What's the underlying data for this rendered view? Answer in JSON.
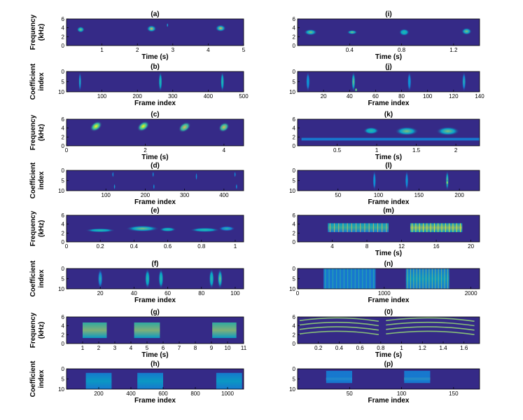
{
  "figure": {
    "left_column_ylabels": {
      "spectrogram": [
        "Frequency",
        "(kHz)"
      ],
      "coefficients": [
        "Coefficient",
        "index"
      ]
    }
  },
  "chart_data": [
    {
      "id": "a",
      "type": "heatmap",
      "title": "(a)",
      "xlabel": "Time (s)",
      "xlim": [
        0,
        5
      ],
      "xticks": [
        1,
        2,
        3,
        4,
        5
      ],
      "ylim": [
        0,
        6
      ],
      "yticks": [
        0,
        2,
        4,
        6
      ],
      "ydir": "normal",
      "blobs": [
        {
          "x": 0.4,
          "y": 3.6,
          "w": 0.22,
          "h": 1.4,
          "i": 0.75
        },
        {
          "x": 2.4,
          "y": 3.8,
          "w": 0.28,
          "h": 1.6,
          "i": 0.8
        },
        {
          "x": 2.85,
          "y": 4.6,
          "w": 0.05,
          "h": 1.0,
          "i": 0.55
        },
        {
          "x": 4.35,
          "y": 3.9,
          "w": 0.3,
          "h": 1.6,
          "i": 0.8
        }
      ]
    },
    {
      "id": "b",
      "type": "heatmap",
      "title": "(b)",
      "xlabel": "Frame index",
      "xlim": [
        0,
        500
      ],
      "xticks": [
        100,
        200,
        300,
        400,
        500
      ],
      "ylim": [
        0,
        10
      ],
      "yticks": [
        0,
        5,
        10
      ],
      "ydir": "reverse",
      "blobs": [
        {
          "x": 38,
          "y": 5,
          "w": 8,
          "h": 10,
          "i": 0.55
        },
        {
          "x": 265,
          "y": 5,
          "w": 10,
          "h": 10,
          "i": 0.6
        },
        {
          "x": 440,
          "y": 5,
          "w": 10,
          "h": 10,
          "i": 0.6
        }
      ]
    },
    {
      "id": "c",
      "type": "heatmap",
      "title": "(c)",
      "xlabel": "Time (s)",
      "xlim": [
        0,
        4.5
      ],
      "xticks": [
        0,
        2,
        4
      ],
      "ylim": [
        0,
        6
      ],
      "yticks": [
        0,
        2,
        4,
        6
      ],
      "ydir": "normal",
      "blobs": [
        {
          "x": 0.75,
          "y": 4.4,
          "w": 0.35,
          "h": 2.0,
          "i": 0.9,
          "slant": -1
        },
        {
          "x": 1.95,
          "y": 4.4,
          "w": 0.35,
          "h": 2.0,
          "i": 0.9,
          "slant": -1
        },
        {
          "x": 3.0,
          "y": 4.2,
          "w": 0.35,
          "h": 2.0,
          "i": 0.85,
          "slant": -1
        },
        {
          "x": 4.0,
          "y": 4.2,
          "w": 0.3,
          "h": 2.0,
          "i": 0.85,
          "slant": -1
        }
      ]
    },
    {
      "id": "d",
      "type": "heatmap",
      "title": "(d)",
      "xlabel": "Frame index",
      "xlim": [
        0,
        450
      ],
      "xticks": [
        100,
        200,
        300,
        400
      ],
      "ylim": [
        0,
        10
      ],
      "yticks": [
        0,
        5,
        10
      ],
      "ydir": "reverse",
      "blobs": [
        {
          "x": 118,
          "y": 2,
          "w": 4,
          "h": 3,
          "i": 0.5
        },
        {
          "x": 122,
          "y": 8,
          "w": 4,
          "h": 3,
          "i": 0.55
        },
        {
          "x": 220,
          "y": 2,
          "w": 4,
          "h": 3,
          "i": 0.5
        },
        {
          "x": 222,
          "y": 8,
          "w": 4,
          "h": 3,
          "i": 0.5
        },
        {
          "x": 330,
          "y": 3,
          "w": 4,
          "h": 4,
          "i": 0.45
        },
        {
          "x": 428,
          "y": 2,
          "w": 4,
          "h": 3,
          "i": 0.5
        },
        {
          "x": 432,
          "y": 8,
          "w": 4,
          "h": 3,
          "i": 0.5
        }
      ]
    },
    {
      "id": "e",
      "type": "heatmap",
      "title": "(e)",
      "xlabel": "",
      "xlim": [
        0,
        1.05
      ],
      "xticks": [
        0,
        0.2,
        0.4,
        0.6,
        0.8,
        1
      ],
      "ylim": [
        0,
        6
      ],
      "yticks": [
        0,
        2,
        4,
        6
      ],
      "ydir": "normal",
      "blobs": [
        {
          "x": 0.2,
          "y": 2.6,
          "w": 0.18,
          "h": 0.9,
          "i": 0.6
        },
        {
          "x": 0.45,
          "y": 3.0,
          "w": 0.2,
          "h": 1.4,
          "i": 0.75
        },
        {
          "x": 0.6,
          "y": 2.8,
          "w": 0.1,
          "h": 1.0,
          "i": 0.6
        },
        {
          "x": 0.82,
          "y": 2.7,
          "w": 0.18,
          "h": 1.0,
          "i": 0.6
        },
        {
          "x": 0.95,
          "y": 3.0,
          "w": 0.1,
          "h": 1.2,
          "i": 0.55
        }
      ]
    },
    {
      "id": "f",
      "type": "heatmap",
      "title": "(f)",
      "xlabel": "Frame index",
      "xlim": [
        0,
        105
      ],
      "xticks": [
        20,
        40,
        60,
        80,
        100
      ],
      "ylim": [
        0,
        10
      ],
      "yticks": [
        0,
        5,
        10
      ],
      "ydir": "reverse",
      "blobs": [
        {
          "x": 20,
          "y": 5,
          "w": 3,
          "h": 10,
          "i": 0.55
        },
        {
          "x": 48,
          "y": 5,
          "w": 3,
          "h": 10,
          "i": 0.6
        },
        {
          "x": 56,
          "y": 5,
          "w": 3,
          "h": 10,
          "i": 0.6
        },
        {
          "x": 86,
          "y": 5,
          "w": 3,
          "h": 10,
          "i": 0.6
        },
        {
          "x": 91,
          "y": 5,
          "w": 3,
          "h": 10,
          "i": 0.65
        }
      ]
    },
    {
      "id": "g",
      "type": "heatmap",
      "title": "(g)",
      "xlabel": "Time (s)",
      "xlim": [
        0,
        11
      ],
      "xticks": [
        1,
        2,
        3,
        4,
        5,
        6,
        7,
        8,
        9,
        10,
        11
      ],
      "ylim": [
        0,
        6
      ],
      "yticks": [
        0,
        2,
        4,
        6
      ],
      "ydir": "normal",
      "blobs": [
        {
          "x": 1.75,
          "y": 3.0,
          "w": 1.5,
          "h": 3.5,
          "i": 0.75,
          "band": true
        },
        {
          "x": 5.0,
          "y": 3.0,
          "w": 1.6,
          "h": 3.5,
          "i": 0.75,
          "band": true
        },
        {
          "x": 9.8,
          "y": 3.0,
          "w": 1.5,
          "h": 3.5,
          "i": 0.75,
          "band": true
        }
      ]
    },
    {
      "id": "h",
      "type": "heatmap",
      "title": "(h)",
      "xlabel": "Frame index",
      "xlim": [
        0,
        1100
      ],
      "xticks": [
        200,
        400,
        600,
        800,
        1000
      ],
      "ylim": [
        0,
        10
      ],
      "yticks": [
        0,
        5,
        10
      ],
      "ydir": "reverse",
      "blobs": [
        {
          "x": 200,
          "y": 6,
          "w": 160,
          "h": 8,
          "i": 0.45,
          "band": true
        },
        {
          "x": 520,
          "y": 6,
          "w": 160,
          "h": 8,
          "i": 0.45,
          "band": true
        },
        {
          "x": 1010,
          "y": 6,
          "w": 160,
          "h": 8,
          "i": 0.45,
          "band": true
        }
      ]
    },
    {
      "id": "i",
      "type": "heatmap",
      "title": "(i)",
      "xlabel": "Time (s)",
      "xlim": [
        0,
        1.4
      ],
      "xticks": [
        0.4,
        0.8,
        1.2
      ],
      "ylim": [
        0,
        6
      ],
      "yticks": [
        0,
        2,
        4,
        6
      ],
      "ydir": "normal",
      "blobs": [
        {
          "x": 0.1,
          "y": 3.0,
          "w": 0.1,
          "h": 1.4,
          "i": 0.65
        },
        {
          "x": 0.42,
          "y": 3.0,
          "w": 0.08,
          "h": 1.0,
          "i": 0.7
        },
        {
          "x": 0.82,
          "y": 3.0,
          "w": 0.08,
          "h": 1.6,
          "i": 0.6
        },
        {
          "x": 1.3,
          "y": 3.2,
          "w": 0.08,
          "h": 1.6,
          "i": 0.65
        }
      ]
    },
    {
      "id": "j",
      "type": "heatmap",
      "title": "(j)",
      "xlabel": "Frame index",
      "xlim": [
        0,
        140
      ],
      "xticks": [
        20,
        40,
        60,
        80,
        100,
        120,
        140
      ],
      "ylim": [
        0,
        10
      ],
      "yticks": [
        0,
        5,
        10
      ],
      "ydir": "reverse",
      "blobs": [
        {
          "x": 8,
          "y": 5,
          "w": 3,
          "h": 10,
          "i": 0.45
        },
        {
          "x": 43,
          "y": 5,
          "w": 3,
          "h": 10,
          "i": 0.65
        },
        {
          "x": 45,
          "y": 9,
          "w": 2,
          "h": 2,
          "i": 0.95
        },
        {
          "x": 86,
          "y": 5,
          "w": 3,
          "h": 10,
          "i": 0.5
        },
        {
          "x": 128,
          "y": 5,
          "w": 3,
          "h": 10,
          "i": 0.55
        }
      ]
    },
    {
      "id": "k",
      "type": "heatmap",
      "title": "(k)",
      "xlabel": "Time (s)",
      "xlim": [
        0,
        2.3
      ],
      "xticks": [
        0.5,
        1,
        1.5,
        2
      ],
      "ylim": [
        0,
        6
      ],
      "yticks": [
        0,
        2,
        4,
        6
      ],
      "ydir": "normal",
      "blobs": [
        {
          "x": 0.93,
          "y": 3.4,
          "w": 0.2,
          "h": 1.6,
          "i": 0.6
        },
        {
          "x": 1.38,
          "y": 3.3,
          "w": 0.3,
          "h": 2.0,
          "i": 0.75
        },
        {
          "x": 1.9,
          "y": 3.3,
          "w": 0.3,
          "h": 2.0,
          "i": 0.7
        },
        {
          "x": 1.2,
          "y": 1.5,
          "w": 2.3,
          "h": 0.6,
          "i": 0.3,
          "band": true
        }
      ]
    },
    {
      "id": "l",
      "type": "heatmap",
      "title": "(l)",
      "xlabel": "Frame index",
      "xlim": [
        0,
        225
      ],
      "xticks": [
        50,
        100,
        150,
        200
      ],
      "ylim": [
        0,
        10
      ],
      "yticks": [
        0,
        5,
        10
      ],
      "ydir": "reverse",
      "blobs": [
        {
          "x": 95,
          "y": 5,
          "w": 4,
          "h": 10,
          "i": 0.4
        },
        {
          "x": 135,
          "y": 5,
          "w": 4,
          "h": 10,
          "i": 0.45
        },
        {
          "x": 185,
          "y": 5,
          "w": 4,
          "h": 10,
          "i": 0.75
        },
        {
          "x": 185,
          "y": 6,
          "w": 3,
          "h": 3,
          "i": 0.95
        }
      ]
    },
    {
      "id": "m",
      "type": "heatmap",
      "title": "(m)",
      "xlabel": "Time (s)",
      "xlim": [
        0,
        21
      ],
      "xticks": [
        4,
        8,
        12,
        16,
        20
      ],
      "ylim": [
        0,
        6
      ],
      "yticks": [
        0,
        2,
        4,
        6
      ],
      "ydir": "normal",
      "blobs": [
        {
          "x": 7.0,
          "y": 3.2,
          "w": 7.0,
          "h": 2.0,
          "i": 0.6,
          "band": true,
          "striped": true
        },
        {
          "x": 16.0,
          "y": 3.2,
          "w": 6.0,
          "h": 2.0,
          "i": 0.65,
          "band": true,
          "striped": true
        }
      ]
    },
    {
      "id": "n",
      "type": "heatmap",
      "title": "(n)",
      "xlabel": "Frame index",
      "xlim": [
        0,
        2100
      ],
      "xticks": [
        0,
        1000,
        2000
      ],
      "ylim": [
        0,
        10
      ],
      "yticks": [
        0,
        5,
        10
      ],
      "ydir": "reverse",
      "blobs": [
        {
          "x": 600,
          "y": 5,
          "w": 600,
          "h": 10,
          "i": 0.35,
          "band": true,
          "striped": true
        },
        {
          "x": 1500,
          "y": 5,
          "w": 500,
          "h": 10,
          "i": 0.4,
          "band": true,
          "striped": true
        }
      ]
    },
    {
      "id": "o",
      "type": "heatmap",
      "title": "(0)",
      "xlabel": "Time (s)",
      "xlim": [
        0,
        1.75
      ],
      "xticks": [
        0.2,
        0.4,
        0.6,
        0.8,
        1,
        1.2,
        1.4,
        1.6
      ],
      "ylim": [
        0,
        6
      ],
      "yticks": [
        0,
        2,
        4,
        6
      ],
      "ydir": "normal",
      "arcs": [
        {
          "x0": 0.02,
          "x1": 0.78,
          "ys": [
            2.5,
            3.5,
            4.5,
            5.5
          ],
          "i": 0.75
        },
        {
          "x0": 0.85,
          "x1": 1.7,
          "ys": [
            2.5,
            3.5,
            4.5,
            5.5
          ],
          "i": 0.75
        }
      ]
    },
    {
      "id": "p",
      "type": "heatmap",
      "title": "(p)",
      "xlabel": "Frame index",
      "xlim": [
        0,
        175
      ],
      "xticks": [
        50,
        100,
        150
      ],
      "ylim": [
        0,
        10
      ],
      "yticks": [
        0,
        5,
        10
      ],
      "ydir": "reverse",
      "blobs": [
        {
          "x": 40,
          "y": 5,
          "w": 25,
          "h": 1.5,
          "i": 0.8,
          "band": true
        },
        {
          "x": 115,
          "y": 5,
          "w": 25,
          "h": 1.5,
          "i": 0.9,
          "band": true
        },
        {
          "x": 40,
          "y": 4,
          "w": 25,
          "h": 6,
          "i": 0.3,
          "band": true
        },
        {
          "x": 115,
          "y": 4,
          "w": 25,
          "h": 6,
          "i": 0.3,
          "band": true
        }
      ]
    }
  ]
}
